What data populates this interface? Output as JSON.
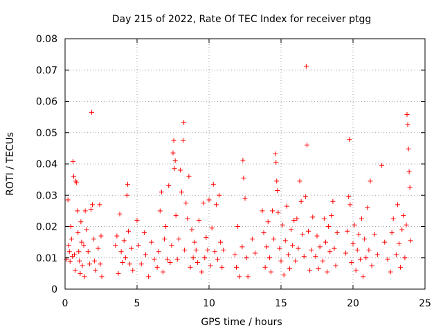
{
  "chart_data": {
    "type": "scatter",
    "title": "Day 215 of 2022, Rate Of TEC Index for receiver ptgg",
    "xlabel": "GPS time / hours",
    "ylabel": "ROTI / TECUs",
    "xlim": [
      0,
      25
    ],
    "ylim": [
      0,
      0.08
    ],
    "xticks": [
      "0",
      "5",
      "10",
      "15",
      "20",
      "25"
    ],
    "yticks": [
      "0",
      "0.01",
      "0.02",
      "0.03",
      "0.04",
      "0.05",
      "0.06",
      "0.07",
      "0.08"
    ],
    "xtick_values": [
      0,
      5,
      10,
      15,
      20,
      25
    ],
    "ytick_values": [
      0,
      0.01,
      0.02,
      0.03,
      0.04,
      0.05,
      0.06,
      0.07,
      0.08
    ],
    "grid": true,
    "marker": "plus",
    "color": "#ff0000",
    "series": [
      {
        "points": [
          [
            0.1,
            0.0095
          ],
          [
            0.2,
            0.0285
          ],
          [
            0.25,
            0.014
          ],
          [
            0.3,
            0.012
          ],
          [
            0.35,
            0.0088
          ],
          [
            0.4,
            0.02
          ],
          [
            0.45,
            0.016
          ],
          [
            0.5,
            0.0105
          ],
          [
            0.55,
            0.0408
          ],
          [
            0.6,
            0.036
          ],
          [
            0.65,
            0.011
          ],
          [
            0.7,
            0.006
          ],
          [
            0.75,
            0.0345
          ],
          [
            0.8,
            0.034
          ],
          [
            0.85,
            0.025
          ],
          [
            0.9,
            0.018
          ],
          [
            0.95,
            0.012
          ],
          [
            1.0,
            0.009
          ],
          [
            1.05,
            0.005
          ],
          [
            1.1,
            0.0215
          ],
          [
            1.15,
            0.015
          ],
          [
            1.2,
            0.0075
          ],
          [
            1.3,
            0.014
          ],
          [
            1.35,
            0.004
          ],
          [
            1.4,
            0.025
          ],
          [
            1.5,
            0.019
          ],
          [
            1.6,
            0.012
          ],
          [
            1.7,
            0.008
          ],
          [
            1.8,
            0.0255
          ],
          [
            1.85,
            0.0565
          ],
          [
            1.9,
            0.027
          ],
          [
            2.0,
            0.016
          ],
          [
            2.05,
            0.009
          ],
          [
            2.1,
            0.006
          ],
          [
            2.3,
            0.013
          ],
          [
            2.4,
            0.027
          ],
          [
            2.45,
            0.008
          ],
          [
            2.5,
            0.017
          ],
          [
            2.55,
            0.004
          ],
          [
            3.5,
            0.014
          ],
          [
            3.6,
            0.017
          ],
          [
            3.7,
            0.005
          ],
          [
            3.8,
            0.024
          ],
          [
            3.9,
            0.012
          ],
          [
            4.0,
            0.0085
          ],
          [
            4.1,
            0.0155
          ],
          [
            4.2,
            0.01
          ],
          [
            4.3,
            0.03
          ],
          [
            4.35,
            0.0335
          ],
          [
            4.4,
            0.0185
          ],
          [
            4.5,
            0.008
          ],
          [
            4.6,
            0.013
          ],
          [
            4.7,
            0.006
          ],
          [
            5.0,
            0.022
          ],
          [
            5.1,
            0.014
          ],
          [
            5.3,
            0.008
          ],
          [
            5.5,
            0.018
          ],
          [
            5.6,
            0.011
          ],
          [
            5.8,
            0.004
          ],
          [
            6.0,
            0.015
          ],
          [
            6.2,
            0.0095
          ],
          [
            6.4,
            0.007
          ],
          [
            6.5,
            0.012
          ],
          [
            6.6,
            0.025
          ],
          [
            6.7,
            0.031
          ],
          [
            6.8,
            0.0055
          ],
          [
            6.9,
            0.016
          ],
          [
            7.0,
            0.02
          ],
          [
            7.1,
            0.0095
          ],
          [
            7.2,
            0.033
          ],
          [
            7.3,
            0.0085
          ],
          [
            7.4,
            0.014
          ],
          [
            7.5,
            0.0435
          ],
          [
            7.55,
            0.0475
          ],
          [
            7.6,
            0.0385
          ],
          [
            7.65,
            0.041
          ],
          [
            7.7,
            0.0235
          ],
          [
            7.8,
            0.0095
          ],
          [
            7.9,
            0.016
          ],
          [
            8.0,
            0.038
          ],
          [
            8.1,
            0.031
          ],
          [
            8.2,
            0.0475
          ],
          [
            8.25,
            0.0532
          ],
          [
            8.3,
            0.0125
          ],
          [
            8.4,
            0.0275
          ],
          [
            8.5,
            0.0225
          ],
          [
            8.6,
            0.036
          ],
          [
            8.7,
            0.007
          ],
          [
            8.8,
            0.019
          ],
          [
            8.9,
            0.01
          ],
          [
            9.0,
            0.015
          ],
          [
            9.1,
            0.0125
          ],
          [
            9.2,
            0.0085
          ],
          [
            9.3,
            0.022
          ],
          [
            9.5,
            0.0055
          ],
          [
            9.6,
            0.0275
          ],
          [
            9.7,
            0.01
          ],
          [
            9.8,
            0.0165
          ],
          [
            9.9,
            0.0125
          ],
          [
            10.0,
            0.0285
          ],
          [
            10.1,
            0.0075
          ],
          [
            10.2,
            0.0195
          ],
          [
            10.3,
            0.0335
          ],
          [
            10.4,
            0.012
          ],
          [
            10.5,
            0.027
          ],
          [
            10.6,
            0.0095
          ],
          [
            10.7,
            0.03
          ],
          [
            10.8,
            0.015
          ],
          [
            10.9,
            0.007
          ],
          [
            11.0,
            0.0125
          ],
          [
            11.8,
            0.011
          ],
          [
            11.9,
            0.007
          ],
          [
            12.0,
            0.02
          ],
          [
            12.1,
            0.004
          ],
          [
            12.3,
            0.0135
          ],
          [
            12.35,
            0.0412
          ],
          [
            12.4,
            0.0355
          ],
          [
            12.5,
            0.029
          ],
          [
            12.6,
            0.01
          ],
          [
            12.7,
            0.004
          ],
          [
            13.0,
            0.016
          ],
          [
            13.2,
            0.0115
          ],
          [
            13.7,
            0.025
          ],
          [
            13.8,
            0.018
          ],
          [
            13.9,
            0.007
          ],
          [
            14.0,
            0.0135
          ],
          [
            14.1,
            0.0215
          ],
          [
            14.2,
            0.01
          ],
          [
            14.3,
            0.0055
          ],
          [
            14.4,
            0.025
          ],
          [
            14.5,
            0.016
          ],
          [
            14.6,
            0.0432
          ],
          [
            14.65,
            0.0405
          ],
          [
            14.7,
            0.0345
          ],
          [
            14.75,
            0.0315
          ],
          [
            14.8,
            0.0245
          ],
          [
            14.9,
            0.013
          ],
          [
            15.0,
            0.009
          ],
          [
            15.1,
            0.0205
          ],
          [
            15.2,
            0.0045
          ],
          [
            15.3,
            0.0155
          ],
          [
            15.4,
            0.0265
          ],
          [
            15.5,
            0.011
          ],
          [
            15.6,
            0.0065
          ],
          [
            15.7,
            0.019
          ],
          [
            15.8,
            0.014
          ],
          [
            15.9,
            0.022
          ],
          [
            16.0,
            0.009
          ],
          [
            16.1,
            0.0225
          ],
          [
            16.2,
            0.013
          ],
          [
            16.3,
            0.0345
          ],
          [
            16.4,
            0.028
          ],
          [
            16.5,
            0.0175
          ],
          [
            16.6,
            0.0105
          ],
          [
            16.7,
            0.0295
          ],
          [
            16.75,
            0.0712
          ],
          [
            16.8,
            0.046
          ],
          [
            16.9,
            0.0185
          ],
          [
            17.0,
            0.006
          ],
          [
            17.1,
            0.0125
          ],
          [
            17.2,
            0.023
          ],
          [
            17.4,
            0.0105
          ],
          [
            17.5,
            0.017
          ],
          [
            17.6,
            0.0065
          ],
          [
            17.7,
            0.0135
          ],
          [
            17.9,
            0.009
          ],
          [
            18.0,
            0.0225
          ],
          [
            18.1,
            0.015
          ],
          [
            18.2,
            0.0055
          ],
          [
            18.3,
            0.02
          ],
          [
            18.4,
            0.012
          ],
          [
            18.5,
            0.0235
          ],
          [
            18.6,
            0.028
          ],
          [
            18.7,
            0.013
          ],
          [
            18.8,
            0.0075
          ],
          [
            18.9,
            0.018
          ],
          [
            19.5,
            0.0115
          ],
          [
            19.6,
            0.0185
          ],
          [
            19.7,
            0.0295
          ],
          [
            19.75,
            0.0478
          ],
          [
            19.8,
            0.027
          ],
          [
            19.9,
            0.0085
          ],
          [
            20.0,
            0.0145
          ],
          [
            20.1,
            0.0205
          ],
          [
            20.2,
            0.006
          ],
          [
            20.3,
            0.0125
          ],
          [
            20.4,
            0.0175
          ],
          [
            20.5,
            0.0095
          ],
          [
            20.6,
            0.0225
          ],
          [
            20.7,
            0.004
          ],
          [
            20.8,
            0.016
          ],
          [
            20.9,
            0.01
          ],
          [
            21.0,
            0.026
          ],
          [
            21.1,
            0.0125
          ],
          [
            21.2,
            0.0345
          ],
          [
            21.3,
            0.0075
          ],
          [
            21.5,
            0.0175
          ],
          [
            21.7,
            0.011
          ],
          [
            22.0,
            0.0395
          ],
          [
            22.2,
            0.015
          ],
          [
            22.4,
            0.0095
          ],
          [
            22.6,
            0.0055
          ],
          [
            22.7,
            0.018
          ],
          [
            22.8,
            0.0225
          ],
          [
            23.0,
            0.011
          ],
          [
            23.1,
            0.027
          ],
          [
            23.2,
            0.0145
          ],
          [
            23.3,
            0.007
          ],
          [
            23.4,
            0.019
          ],
          [
            23.5,
            0.0235
          ],
          [
            23.6,
            0.01
          ],
          [
            23.7,
            0.0205
          ],
          [
            23.75,
            0.0558
          ],
          [
            23.8,
            0.0525
          ],
          [
            23.85,
            0.0448
          ],
          [
            23.9,
            0.0375
          ],
          [
            23.95,
            0.0325
          ],
          [
            24.0,
            0.0155
          ]
        ]
      }
    ]
  }
}
